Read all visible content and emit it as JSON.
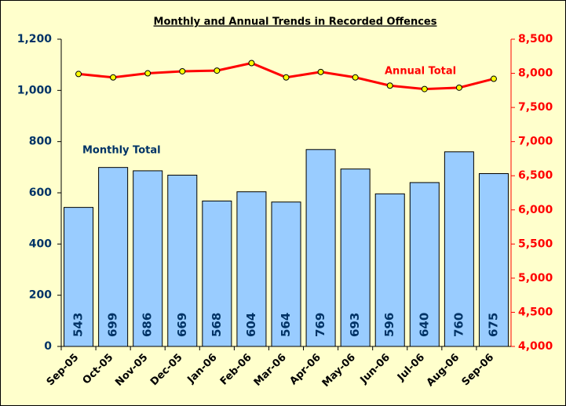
{
  "chart_data": {
    "type": "bar-line",
    "title": "Monthly and Annual Trends in Recorded Offences",
    "categories": [
      "Sep-05",
      "Oct-05",
      "Nov-05",
      "Dec-05",
      "Jan-06",
      "Feb-06",
      "Mar-06",
      "Apr-06",
      "May-06",
      "Jun-06",
      "Jul-06",
      "Aug-06",
      "Sep-06"
    ],
    "series": [
      {
        "name": "Monthly Total",
        "type": "bar",
        "color": "#99ccff",
        "values": [
          543,
          699,
          686,
          669,
          568,
          604,
          564,
          769,
          693,
          596,
          640,
          760,
          675
        ]
      },
      {
        "name": "Annual Total",
        "type": "line",
        "axis": "y2",
        "color": "#ff0000",
        "marker_color": "#ffff00",
        "values": [
          7990,
          7940,
          8000,
          8030,
          8040,
          8150,
          7940,
          8020,
          7940,
          7820,
          7770,
          7790,
          7920
        ]
      }
    ],
    "ylim": [
      0,
      1200
    ],
    "yticks": [
      0,
      200,
      400,
      600,
      800,
      {
        "value": 1000,
        "label": "1,000"
      },
      {
        "value": 1200,
        "label": "1,200"
      }
    ],
    "y2lim": [
      4000,
      8500
    ],
    "y2ticks": [
      {
        "value": 4000,
        "label": "4,000"
      },
      {
        "value": 4500,
        "label": "4,500"
      },
      {
        "value": 5000,
        "label": "5,000"
      },
      {
        "value": 5500,
        "label": "5,500"
      },
      {
        "value": 6000,
        "label": "6,000"
      },
      {
        "value": 6500,
        "label": "6,500"
      },
      {
        "value": 7000,
        "label": "7,000"
      },
      {
        "value": 7500,
        "label": "7,500"
      },
      {
        "value": 8000,
        "label": "8,000"
      },
      {
        "value": 8500,
        "label": "8,500"
      }
    ]
  }
}
